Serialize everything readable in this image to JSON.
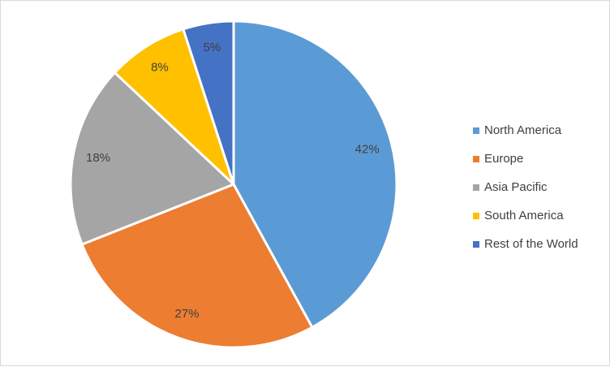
{
  "chart_data": {
    "type": "pie",
    "categories": [
      "North America",
      "Europe",
      "Asia Pacific",
      "South America",
      "Rest of the World"
    ],
    "values": [
      42,
      27,
      18,
      8,
      5
    ],
    "data_labels": [
      "42%",
      "27%",
      "18%",
      "8%",
      "5%"
    ],
    "colors": [
      "#5b9bd5",
      "#ed7d31",
      "#a5a5a5",
      "#ffc000",
      "#4472c4"
    ],
    "start_angle_deg": 0,
    "direction": "clockwise",
    "legend_position": "right",
    "title": ""
  }
}
